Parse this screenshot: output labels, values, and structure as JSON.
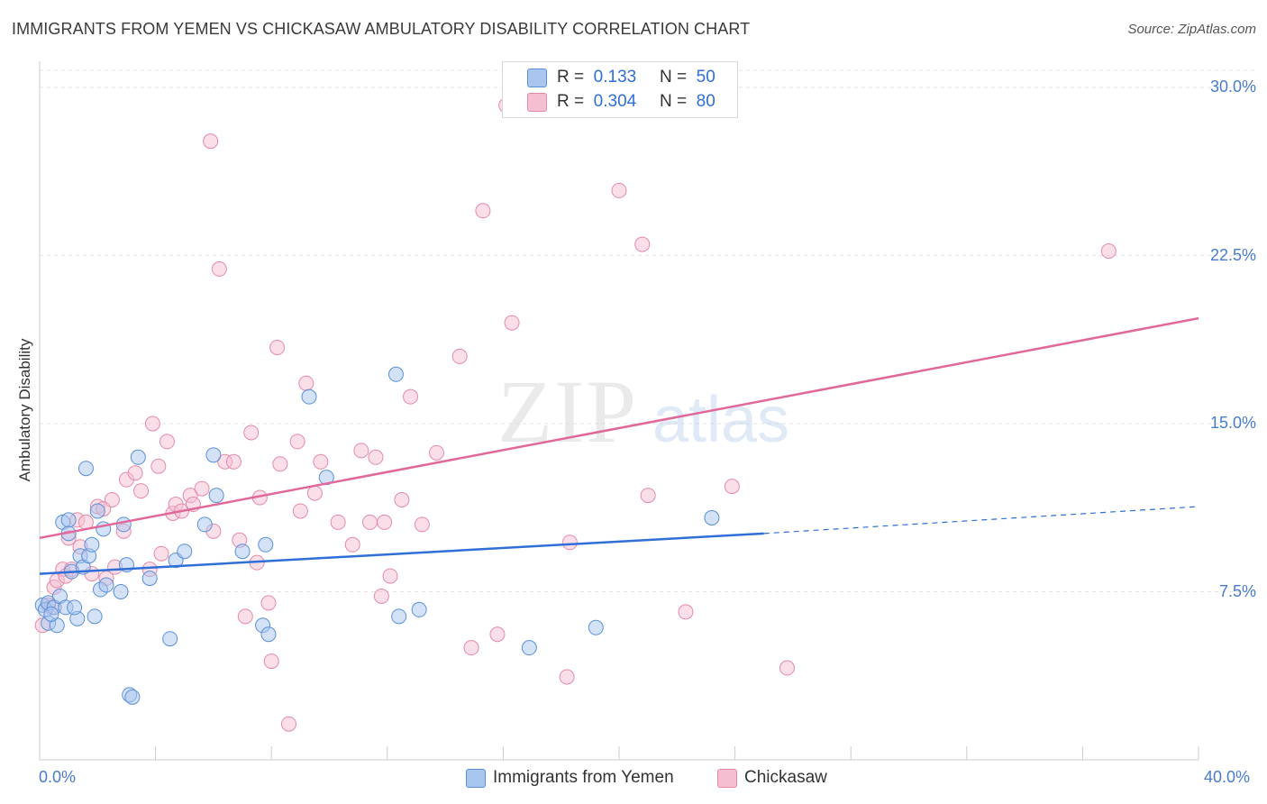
{
  "title": "IMMIGRANTS FROM YEMEN VS CHICKASAW AMBULATORY DISABILITY CORRELATION CHART",
  "source": "Source: ZipAtlas.com",
  "watermark": {
    "zip": "ZIP",
    "atlas": "atlas"
  },
  "colors": {
    "blue_fill": "#a9c6f0",
    "blue_stroke": "#5b8fd9",
    "blue_line": "#2f6fd6",
    "pink_fill": "#f6bfd1",
    "pink_stroke": "#e58aa9",
    "pink_line": "#e0689a",
    "grid": "#e3e3e3",
    "tick_text": "#4a7cc9"
  },
  "legend": {
    "rows": [
      {
        "r_label": "R =",
        "r_value": "0.133",
        "n_label": "N =",
        "n_value": "50",
        "color": "blue"
      },
      {
        "r_label": "R =",
        "r_value": "0.304",
        "n_label": "N =",
        "n_value": "80",
        "color": "pink"
      }
    ]
  },
  "bottom_legend": [
    {
      "label": "Immigrants from Yemen",
      "color": "blue"
    },
    {
      "label": "Chickasaw",
      "color": "pink"
    }
  ],
  "chart_data": {
    "type": "scatter",
    "title": "IMMIGRANTS FROM YEMEN VS CHICKASAW AMBULATORY DISABILITY CORRELATION CHART",
    "xlabel": "",
    "ylabel": "Ambulatory Disability",
    "xlim": [
      0,
      40
    ],
    "ylim": [
      0,
      30.5
    ],
    "x_tick_labels": [
      "0.0%",
      "40.0%"
    ],
    "y_ticks": [
      7.5,
      15.0,
      22.5,
      30.0
    ],
    "y_tick_labels": [
      "7.5%",
      "15.0%",
      "22.5%",
      "30.0%"
    ],
    "grid": true,
    "legend_position": "top-center",
    "series": [
      {
        "name": "Immigrants from Yemen",
        "color": "blue",
        "r": 0.133,
        "n": 50,
        "trend": {
          "x0": 0,
          "y0": 8.3,
          "x1": 25,
          "y1": 10.1,
          "dash_to_x": 40,
          "dash_to_y": 11.3
        },
        "points": [
          [
            0.1,
            6.9
          ],
          [
            0.2,
            6.7
          ],
          [
            0.3,
            6.1
          ],
          [
            0.3,
            7.0
          ],
          [
            0.5,
            6.8
          ],
          [
            0.6,
            6.0
          ],
          [
            0.7,
            7.3
          ],
          [
            0.8,
            10.6
          ],
          [
            0.9,
            6.8
          ],
          [
            1.0,
            10.7
          ],
          [
            1.0,
            10.1
          ],
          [
            1.1,
            8.4
          ],
          [
            1.3,
            6.3
          ],
          [
            1.4,
            9.1
          ],
          [
            1.5,
            8.6
          ],
          [
            1.6,
            13.0
          ],
          [
            1.7,
            9.1
          ],
          [
            1.8,
            9.6
          ],
          [
            1.9,
            6.4
          ],
          [
            2.0,
            11.1
          ],
          [
            2.1,
            7.6
          ],
          [
            2.2,
            10.3
          ],
          [
            2.3,
            7.8
          ],
          [
            2.9,
            10.5
          ],
          [
            3.0,
            8.7
          ],
          [
            3.1,
            2.9
          ],
          [
            3.2,
            2.8
          ],
          [
            3.4,
            13.5
          ],
          [
            3.8,
            8.1
          ],
          [
            2.8,
            7.5
          ],
          [
            4.5,
            5.4
          ],
          [
            4.7,
            8.9
          ],
          [
            5.0,
            9.3
          ],
          [
            5.7,
            10.5
          ],
          [
            6.0,
            13.6
          ],
          [
            6.1,
            11.8
          ],
          [
            7.0,
            9.3
          ],
          [
            7.7,
            6.0
          ],
          [
            7.8,
            9.6
          ],
          [
            7.9,
            5.6
          ],
          [
            9.3,
            16.2
          ],
          [
            9.9,
            12.6
          ],
          [
            12.3,
            17.2
          ],
          [
            12.4,
            6.4
          ],
          [
            13.1,
            6.7
          ],
          [
            16.9,
            5.0
          ],
          [
            19.2,
            5.9
          ],
          [
            23.2,
            10.8
          ],
          [
            0.4,
            6.5
          ],
          [
            1.2,
            6.8
          ]
        ]
      },
      {
        "name": "Chickasaw",
        "color": "pink",
        "r": 0.304,
        "n": 80,
        "trend": {
          "x0": 0,
          "y0": 9.9,
          "x1": 40,
          "y1": 19.7
        },
        "points": [
          [
            0.1,
            6.0
          ],
          [
            0.3,
            6.9
          ],
          [
            0.4,
            6.8
          ],
          [
            0.5,
            7.7
          ],
          [
            0.6,
            8.0
          ],
          [
            0.8,
            8.5
          ],
          [
            0.9,
            8.2
          ],
          [
            1.0,
            9.9
          ],
          [
            1.1,
            8.5
          ],
          [
            1.3,
            10.7
          ],
          [
            1.4,
            9.5
          ],
          [
            1.6,
            10.6
          ],
          [
            1.8,
            8.3
          ],
          [
            2.0,
            11.3
          ],
          [
            2.2,
            11.2
          ],
          [
            2.3,
            8.1
          ],
          [
            2.5,
            11.6
          ],
          [
            2.6,
            8.6
          ],
          [
            2.9,
            10.2
          ],
          [
            3.0,
            12.5
          ],
          [
            3.3,
            12.8
          ],
          [
            3.5,
            12.0
          ],
          [
            3.8,
            8.5
          ],
          [
            3.9,
            15.0
          ],
          [
            4.1,
            13.1
          ],
          [
            4.2,
            9.2
          ],
          [
            4.4,
            14.2
          ],
          [
            4.6,
            11.0
          ],
          [
            4.7,
            11.4
          ],
          [
            4.9,
            11.1
          ],
          [
            5.2,
            11.8
          ],
          [
            5.3,
            11.4
          ],
          [
            5.6,
            12.1
          ],
          [
            5.9,
            27.6
          ],
          [
            6.0,
            10.2
          ],
          [
            6.2,
            21.9
          ],
          [
            6.4,
            13.3
          ],
          [
            6.7,
            13.3
          ],
          [
            6.9,
            9.8
          ],
          [
            7.1,
            6.4
          ],
          [
            7.3,
            14.6
          ],
          [
            7.5,
            8.8
          ],
          [
            7.6,
            11.7
          ],
          [
            7.9,
            7.0
          ],
          [
            8.0,
            4.4
          ],
          [
            8.2,
            18.4
          ],
          [
            8.3,
            13.2
          ],
          [
            8.6,
            1.6
          ],
          [
            8.9,
            14.2
          ],
          [
            9.0,
            11.1
          ],
          [
            9.2,
            16.8
          ],
          [
            9.5,
            11.9
          ],
          [
            9.7,
            13.3
          ],
          [
            10.3,
            10.6
          ],
          [
            10.8,
            9.6
          ],
          [
            11.1,
            13.8
          ],
          [
            11.4,
            10.6
          ],
          [
            11.6,
            13.5
          ],
          [
            11.9,
            10.6
          ],
          [
            11.8,
            7.3
          ],
          [
            12.1,
            8.2
          ],
          [
            12.5,
            11.6
          ],
          [
            12.8,
            16.2
          ],
          [
            13.2,
            10.5
          ],
          [
            13.7,
            13.7
          ],
          [
            14.5,
            18.0
          ],
          [
            14.9,
            5.0
          ],
          [
            15.3,
            24.5
          ],
          [
            15.8,
            5.6
          ],
          [
            16.3,
            19.5
          ],
          [
            16.1,
            29.2
          ],
          [
            18.2,
            3.7
          ],
          [
            18.3,
            9.7
          ],
          [
            20.0,
            25.4
          ],
          [
            20.8,
            23.0
          ],
          [
            21.0,
            11.8
          ],
          [
            22.3,
            6.6
          ],
          [
            23.9,
            12.2
          ],
          [
            25.8,
            4.1
          ],
          [
            36.9,
            22.7
          ]
        ]
      }
    ]
  }
}
